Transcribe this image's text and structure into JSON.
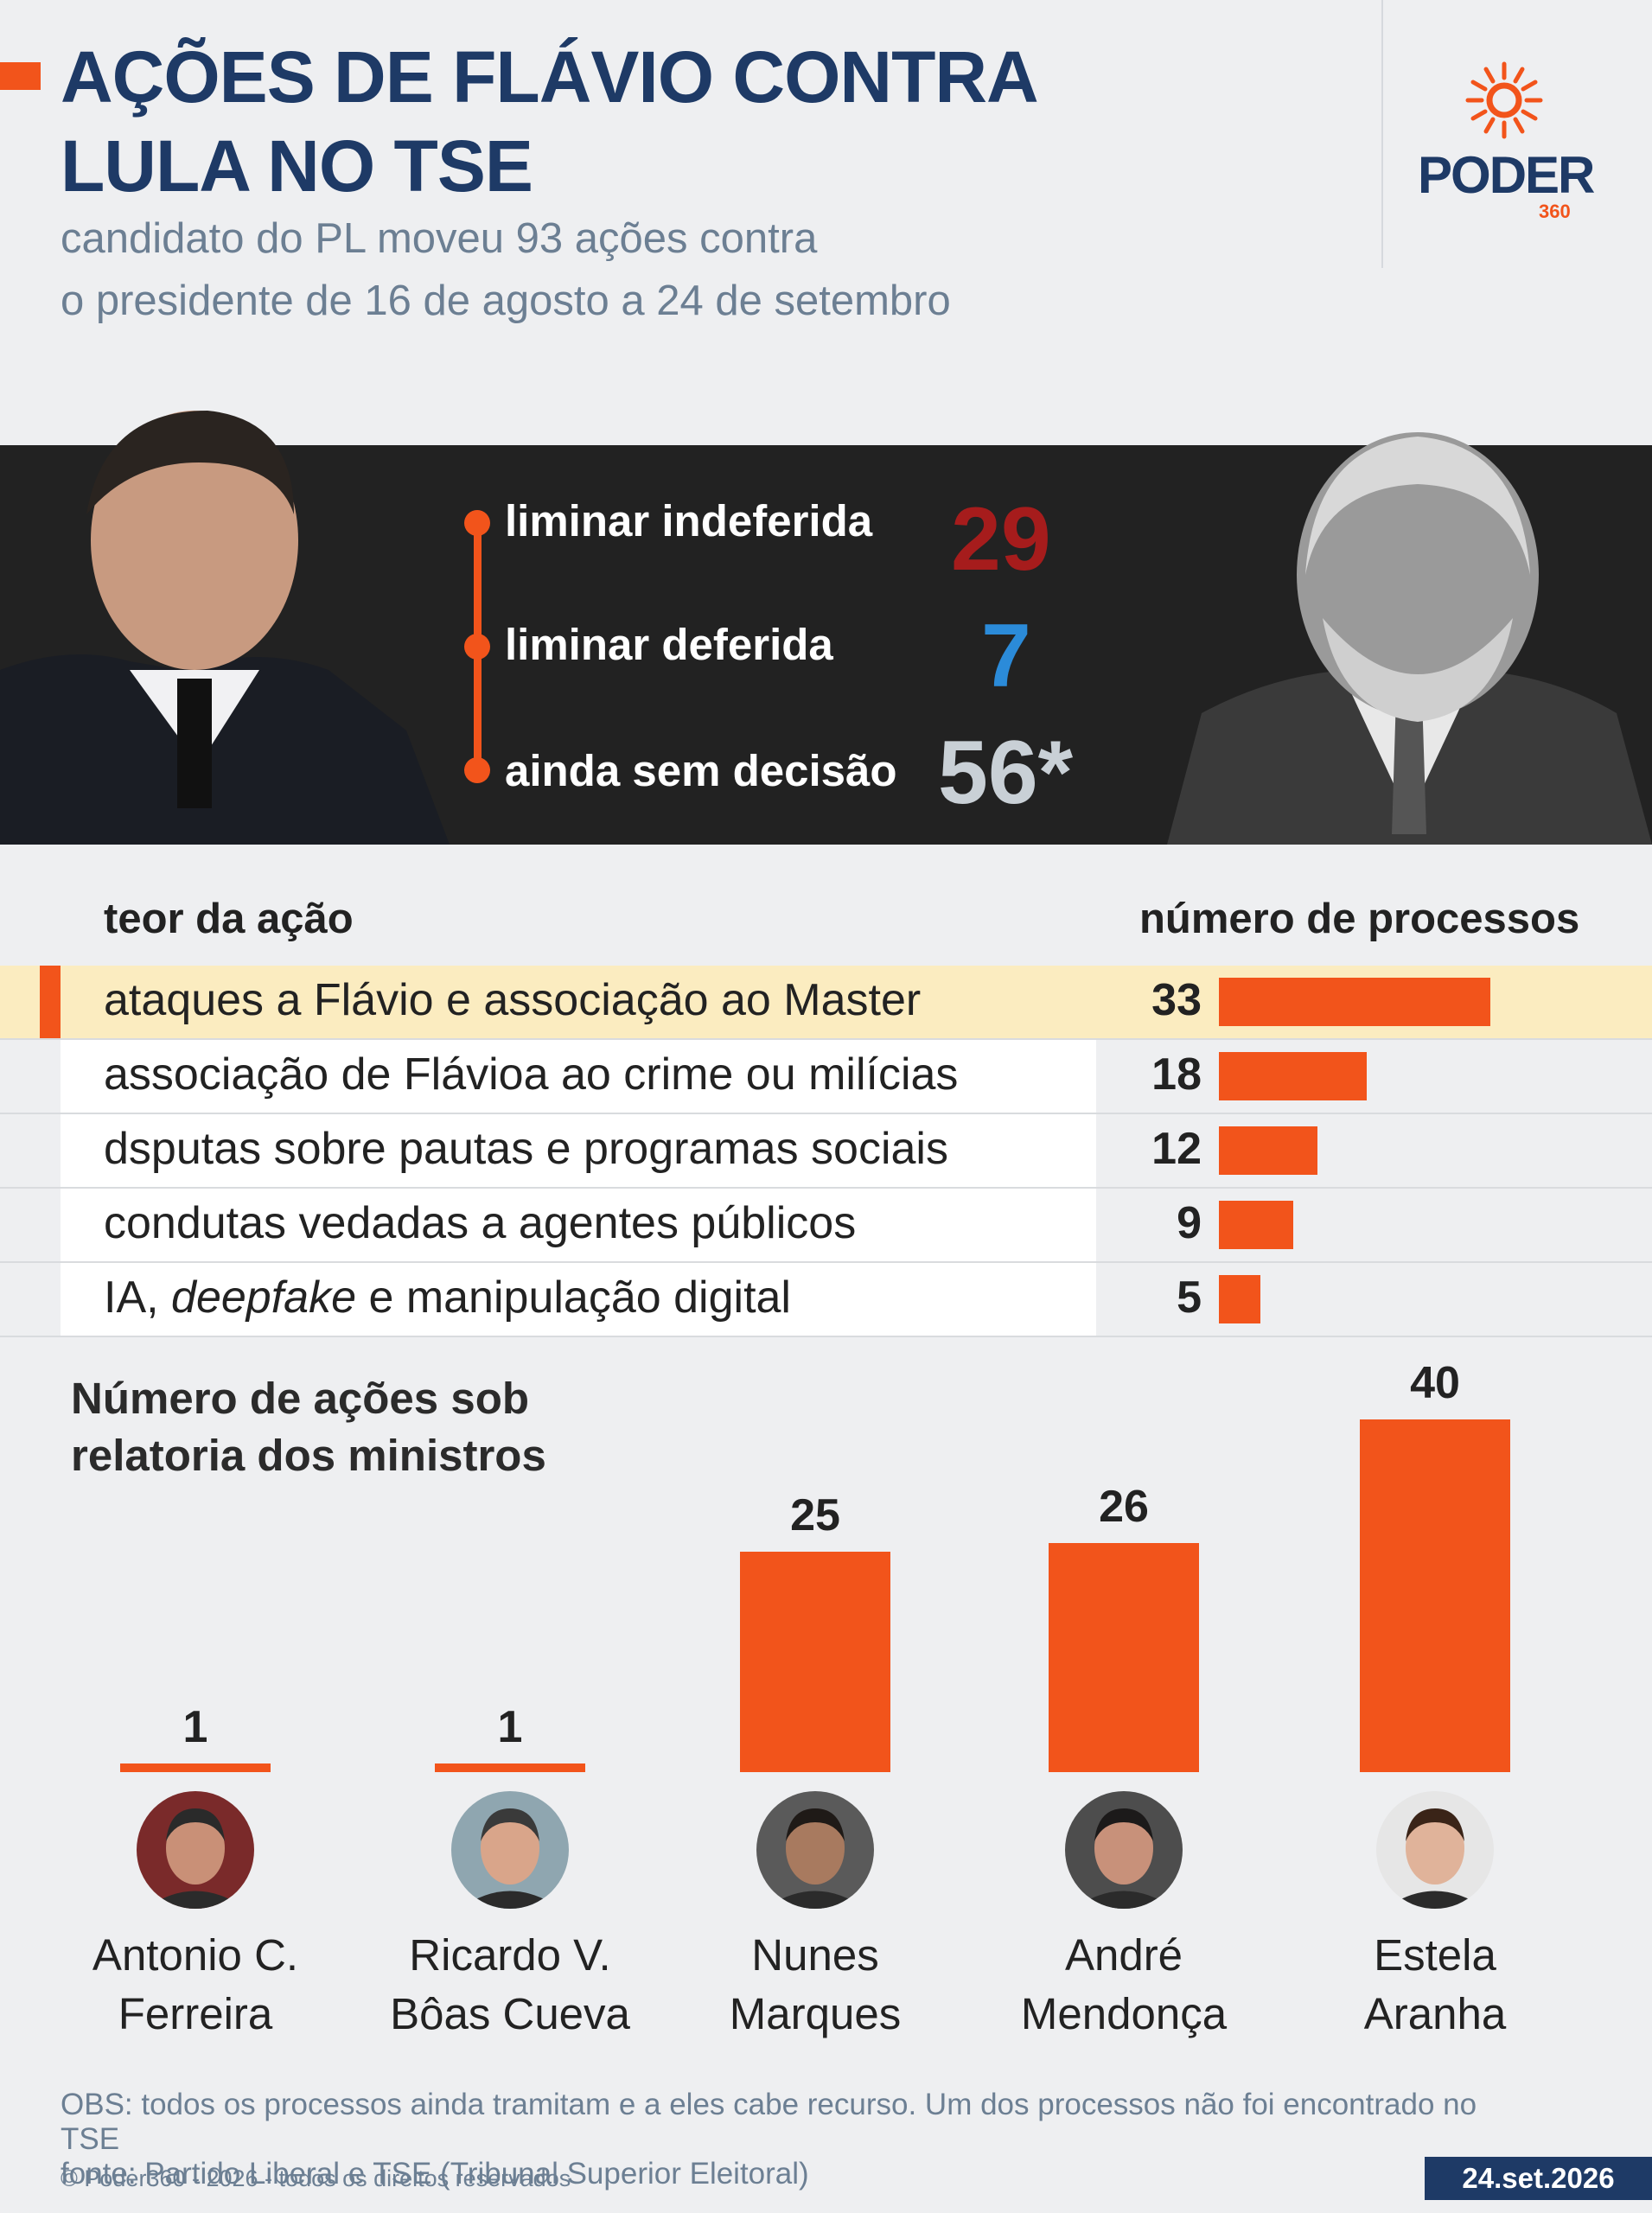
{
  "header": {
    "title_line1": "AÇÕES DE FLÁVIO CONTRA",
    "title_line2": "LULA NO TSE",
    "subtitle_line1": "candidato do PL moveu 93 ações contra",
    "subtitle_line2": "o presidente de 16 de agosto a 24 de setembro"
  },
  "logo": {
    "word": "PODER",
    "number": "360"
  },
  "stats": [
    {
      "label": "liminar indeferida",
      "value": "29",
      "color": "#a61c1c"
    },
    {
      "label": "liminar deferida",
      "value": "7",
      "color": "#2b8bd9"
    },
    {
      "label": "ainda sem decisão",
      "value": "56*",
      "color": "#c9d0d6"
    }
  ],
  "table": {
    "col1": "teor da ação",
    "col2": "número de processos"
  },
  "chart_data": [
    {
      "type": "bar",
      "orientation": "horizontal",
      "xlabel": "teor da ação",
      "ylabel": "número de processos",
      "categories": [
        "ataques a Flávio e associação ao Master",
        "associação de Flávioa ao crime ou milícias",
        "dsputas sobre pautas e programas sociais",
        "condutas vedadas a agentes públicos",
        "IA, deepfake e manipulação digital"
      ],
      "values": [
        33,
        18,
        12,
        9,
        5
      ],
      "highlight_index": 0,
      "color": "#f2541b"
    },
    {
      "type": "bar",
      "orientation": "vertical",
      "title": "Número de ações sob relatoria dos ministros",
      "categories": [
        "Antonio C. Ferreira",
        "Ricardo V. Bôas Cueva",
        "Nunes Marques",
        "André Mendonça",
        "Estela Aranha"
      ],
      "values": [
        1,
        1,
        25,
        26,
        40
      ],
      "color": "#f2541b"
    }
  ],
  "bottom": {
    "title_line1": "Número de ações sob",
    "title_line2": "relatoria dos ministros",
    "ministers": [
      {
        "line1": "Antonio C.",
        "line2": "Ferreira",
        "value": "1"
      },
      {
        "line1": "Ricardo V.",
        "line2": "Bôas Cueva",
        "value": "1"
      },
      {
        "line1": "Nunes",
        "line2": "Marques",
        "value": "25"
      },
      {
        "line1": "André",
        "line2": "Mendonça",
        "value": "26"
      },
      {
        "line1": "Estela",
        "line2": "Aranha",
        "value": "40"
      }
    ]
  },
  "footer": {
    "obs": "OBS: todos os processos ainda tramitam e a eles cabe recurso. Um dos processos não foi encontrado no TSE",
    "source": "fonte: Partido Liberal e TSE (Tribunal Superior Eleitoral)",
    "copyright": "© Poder360 - 2026 - todos os direitos reservados",
    "date": "24.set.2026"
  }
}
